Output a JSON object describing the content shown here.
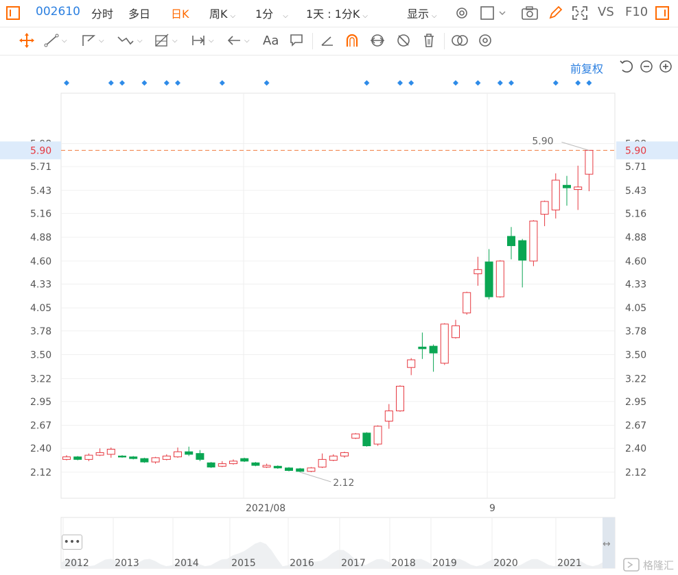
{
  "topbar": {
    "code": "002610",
    "tabs": [
      "分时",
      "多日",
      "日K",
      "周K",
      "1分",
      "1天 : 1分K",
      "显示"
    ],
    "active_tab": "日K",
    "vs_label": "VS",
    "f10_label": "F10"
  },
  "toolbar": {
    "font_label": "Aa",
    "right_label": "前复权"
  },
  "chart_data": {
    "type": "candlestick",
    "y_ticks": [
      "5.98",
      "5.90",
      "5.71",
      "5.43",
      "5.16",
      "4.88",
      "4.60",
      "4.33",
      "4.05",
      "3.78",
      "3.50",
      "3.22",
      "2.95",
      "2.67",
      "2.40",
      "2.12"
    ],
    "y_ticks_right": [
      "5.98",
      "5.90",
      "5.71",
      "5.43",
      "5.16",
      "4.88",
      "4.60",
      "4.33",
      "4.05",
      "3.78",
      "3.50",
      "3.22",
      "2.95",
      "2.67",
      "2.40",
      "2.12"
    ],
    "ylim": [
      2.12,
      5.98
    ],
    "last_price": "5.90",
    "max_label": "5.90",
    "min_label": "2.12",
    "x_labels": [
      "2021/08",
      "9"
    ],
    "candles": [
      {
        "o": 2.27,
        "c": 2.3,
        "h": 2.32,
        "l": 2.26
      },
      {
        "o": 2.3,
        "c": 2.27,
        "h": 2.31,
        "l": 2.26
      },
      {
        "o": 2.27,
        "c": 2.32,
        "h": 2.34,
        "l": 2.25
      },
      {
        "o": 2.32,
        "c": 2.35,
        "h": 2.4,
        "l": 2.31
      },
      {
        "o": 2.33,
        "c": 2.39,
        "h": 2.41,
        "l": 2.29
      },
      {
        "o": 2.31,
        "c": 2.3,
        "h": 2.32,
        "l": 2.29
      },
      {
        "o": 2.3,
        "c": 2.28,
        "h": 2.31,
        "l": 2.27
      },
      {
        "o": 2.28,
        "c": 2.24,
        "h": 2.29,
        "l": 2.23
      },
      {
        "o": 2.24,
        "c": 2.29,
        "h": 2.3,
        "l": 2.22
      },
      {
        "o": 2.27,
        "c": 2.31,
        "h": 2.33,
        "l": 2.26
      },
      {
        "o": 2.3,
        "c": 2.36,
        "h": 2.41,
        "l": 2.29
      },
      {
        "o": 2.36,
        "c": 2.33,
        "h": 2.42,
        "l": 2.31
      },
      {
        "o": 2.34,
        "c": 2.27,
        "h": 2.38,
        "l": 2.25
      },
      {
        "o": 2.23,
        "c": 2.18,
        "h": 2.24,
        "l": 2.17
      },
      {
        "o": 2.19,
        "c": 2.22,
        "h": 2.25,
        "l": 2.18
      },
      {
        "o": 2.22,
        "c": 2.25,
        "h": 2.27,
        "l": 2.21
      },
      {
        "o": 2.28,
        "c": 2.25,
        "h": 2.29,
        "l": 2.24
      },
      {
        "o": 2.23,
        "c": 2.2,
        "h": 2.24,
        "l": 2.19
      },
      {
        "o": 2.18,
        "c": 2.2,
        "h": 2.22,
        "l": 2.17
      },
      {
        "o": 2.19,
        "c": 2.17,
        "h": 2.2,
        "l": 2.16
      },
      {
        "o": 2.17,
        "c": 2.14,
        "h": 2.18,
        "l": 2.13
      },
      {
        "o": 2.16,
        "c": 2.13,
        "h": 2.17,
        "l": 2.12
      },
      {
        "o": 2.13,
        "c": 2.17,
        "h": 2.18,
        "l": 2.12
      },
      {
        "o": 2.18,
        "c": 2.27,
        "h": 2.34,
        "l": 2.17
      },
      {
        "o": 2.26,
        "c": 2.31,
        "h": 2.33,
        "l": 2.25
      },
      {
        "o": 2.31,
        "c": 2.35,
        "h": 2.36,
        "l": 2.29
      },
      {
        "o": 2.52,
        "c": 2.57,
        "h": 2.58,
        "l": 2.51
      },
      {
        "o": 2.58,
        "c": 2.43,
        "h": 2.59,
        "l": 2.42
      },
      {
        "o": 2.45,
        "c": 2.66,
        "h": 2.67,
        "l": 2.43
      },
      {
        "o": 2.72,
        "c": 2.84,
        "h": 2.92,
        "l": 2.63
      },
      {
        "o": 2.84,
        "c": 3.13,
        "h": 3.14,
        "l": 2.83
      },
      {
        "o": 3.35,
        "c": 3.44,
        "h": 3.46,
        "l": 3.26
      },
      {
        "o": 3.59,
        "c": 3.57,
        "h": 3.76,
        "l": 3.45
      },
      {
        "o": 3.6,
        "c": 3.52,
        "h": 3.62,
        "l": 3.3
      },
      {
        "o": 3.4,
        "c": 3.86,
        "h": 3.87,
        "l": 3.38
      },
      {
        "o": 3.7,
        "c": 3.84,
        "h": 3.91,
        "l": 3.69
      },
      {
        "o": 3.99,
        "c": 4.23,
        "h": 4.24,
        "l": 3.97
      },
      {
        "o": 4.45,
        "c": 4.5,
        "h": 4.65,
        "l": 4.31
      },
      {
        "o": 4.59,
        "c": 4.18,
        "h": 4.74,
        "l": 4.15
      },
      {
        "o": 4.18,
        "c": 4.6,
        "h": 4.61,
        "l": 4.17
      },
      {
        "o": 4.89,
        "c": 4.78,
        "h": 5.0,
        "l": 4.62
      },
      {
        "o": 4.84,
        "c": 4.61,
        "h": 4.86,
        "l": 4.29
      },
      {
        "o": 4.6,
        "c": 5.07,
        "h": 5.08,
        "l": 4.54
      },
      {
        "o": 5.15,
        "c": 5.3,
        "h": 5.31,
        "l": 5.01
      },
      {
        "o": 5.2,
        "c": 5.55,
        "h": 5.63,
        "l": 5.1
      },
      {
        "o": 5.49,
        "c": 5.46,
        "h": 5.6,
        "l": 5.25
      },
      {
        "o": 5.44,
        "c": 5.47,
        "h": 5.72,
        "l": 5.2
      },
      {
        "o": 5.62,
        "c": 5.9,
        "h": 5.9,
        "l": 5.42
      }
    ],
    "event_marker_indices": [
      0,
      4,
      5,
      7,
      9,
      10,
      14,
      18,
      27,
      30,
      31,
      35,
      37,
      39,
      40,
      44,
      46,
      47
    ],
    "nav_years": [
      "2012",
      "2013",
      "2014",
      "2015",
      "2016",
      "2017",
      "2018",
      "2019",
      "2020",
      "2021"
    ]
  },
  "colors": {
    "up": "#e6373f",
    "down": "#0aa653",
    "accent": "#ff6a00",
    "blue": "#2b7fe0",
    "marker": "#2e8be8",
    "price_line": "#f07b3f"
  },
  "icons": [
    "expand-window-icon",
    "camera-icon",
    "pencil-icon",
    "fullscreen-icon",
    "gear-icon",
    "settings-icon"
  ]
}
